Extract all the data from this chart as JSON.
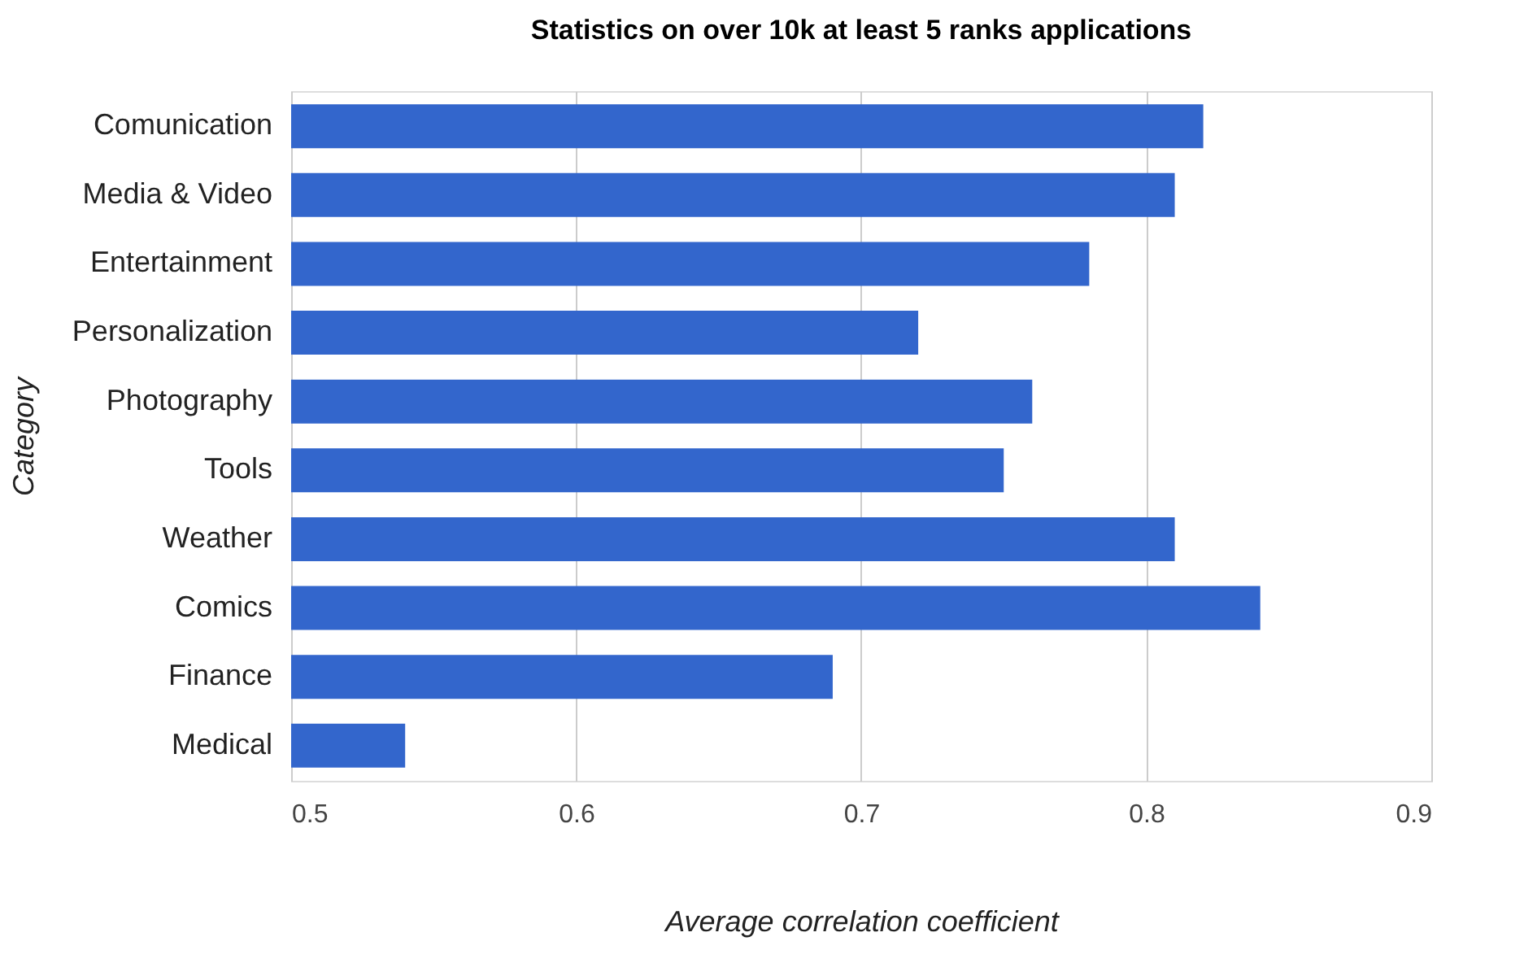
{
  "chart_data": {
    "type": "bar",
    "orientation": "horizontal",
    "title": "Statistics on over 10k at least 5 ranks applications",
    "xlabel": "Average correlation coefficient",
    "ylabel": "Category",
    "categories": [
      "Comunication",
      "Media & Video",
      "Entertainment",
      "Personalization",
      "Photography",
      "Tools",
      "Weather",
      "Comics",
      "Finance",
      "Medical"
    ],
    "values": [
      0.82,
      0.81,
      0.78,
      0.72,
      0.76,
      0.75,
      0.81,
      0.84,
      0.69,
      0.54
    ],
    "color": "#3366cc",
    "xlim": [
      0.5,
      0.9
    ],
    "xticks": [
      0.5,
      0.6,
      0.7,
      0.8,
      0.9
    ],
    "grid": "x"
  }
}
